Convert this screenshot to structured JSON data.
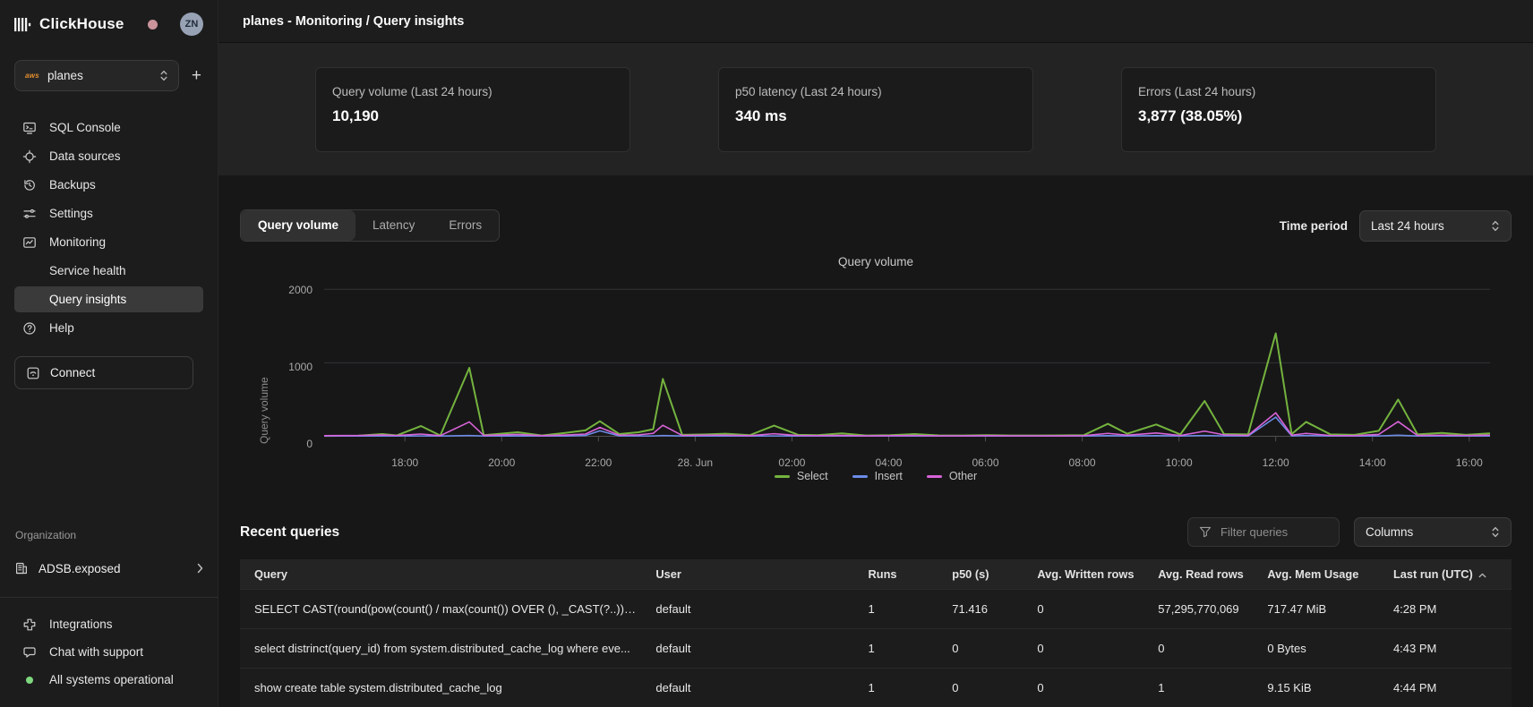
{
  "brand": {
    "name": "ClickHouse",
    "avatar": "ZN"
  },
  "sidebar": {
    "service_selector": {
      "provider": "aws",
      "label": "planes",
      "add_button": "+"
    },
    "nav": [
      {
        "label": "SQL Console",
        "icon": "sql-console-icon"
      },
      {
        "label": "Data sources",
        "icon": "data-sources-icon"
      },
      {
        "label": "Backups",
        "icon": "backups-icon"
      },
      {
        "label": "Settings",
        "icon": "settings-icon"
      },
      {
        "label": "Monitoring",
        "icon": "monitoring-icon"
      },
      {
        "label": "Service health",
        "sub": true
      },
      {
        "label": "Query insights",
        "sub": true,
        "active": true
      },
      {
        "label": "Help",
        "icon": "help-icon"
      }
    ],
    "connect": {
      "label": "Connect"
    },
    "organization": {
      "section_label": "Organization",
      "name": "ADSB.exposed"
    },
    "footer": [
      {
        "label": "Integrations",
        "icon": "integrations-icon"
      },
      {
        "label": "Chat with support",
        "icon": "chat-icon"
      },
      {
        "label": "All systems operational",
        "icon": "status-dot",
        "dot_color": "#7ed87e"
      }
    ]
  },
  "topbar": {
    "title": "planes - Monitoring / Query insights"
  },
  "stats_cards": [
    {
      "label": "Query volume (Last 24 hours)",
      "value": "10,190"
    },
    {
      "label": "p50 latency (Last 24 hours)",
      "value": "340 ms"
    },
    {
      "label": "Errors (Last 24 hours)",
      "value": "3,877 (38.05%)"
    }
  ],
  "chart_tabs": {
    "tabs": [
      {
        "label": "Query volume",
        "active": true
      },
      {
        "label": "Latency",
        "active": false
      },
      {
        "label": "Errors",
        "active": false
      }
    ],
    "time_period_label": "Time period",
    "time_period_value": "Last 24 hours"
  },
  "chart_data": {
    "type": "line",
    "title": "Query volume",
    "ylabel": "Query volume",
    "ylim": [
      0,
      2000
    ],
    "yticks": [
      0,
      1000,
      2000
    ],
    "grid": "horizontal",
    "legend_position": "bottom",
    "x_unit": "hours from window start (24h window, 27 Jun 16:20 - 28 Jun 16:25 approx)",
    "xrange": [
      0,
      24.1
    ],
    "xticks": [
      {
        "pos": 1.67,
        "label": "18:00"
      },
      {
        "pos": 3.67,
        "label": "20:00"
      },
      {
        "pos": 5.67,
        "label": "22:00"
      },
      {
        "pos": 7.67,
        "label": "28. Jun"
      },
      {
        "pos": 9.67,
        "label": "02:00"
      },
      {
        "pos": 11.67,
        "label": "04:00"
      },
      {
        "pos": 13.67,
        "label": "06:00"
      },
      {
        "pos": 15.67,
        "label": "08:00"
      },
      {
        "pos": 17.67,
        "label": "10:00"
      },
      {
        "pos": 19.67,
        "label": "12:00"
      },
      {
        "pos": 21.67,
        "label": "14:00"
      },
      {
        "pos": 23.67,
        "label": "16:00"
      }
    ],
    "x": [
      0,
      0.7,
      1.2,
      1.5,
      2.0,
      2.4,
      3.0,
      3.3,
      4.0,
      4.5,
      5.0,
      5.4,
      5.7,
      6.1,
      6.5,
      6.8,
      7.0,
      7.4,
      7.9,
      8.3,
      8.8,
      9.3,
      9.8,
      10.2,
      10.7,
      11.2,
      11.7,
      12.2,
      12.7,
      13.2,
      13.7,
      14.2,
      14.7,
      15.2,
      15.7,
      16.2,
      16.6,
      17.2,
      17.7,
      18.2,
      18.6,
      19.1,
      19.67,
      20.0,
      20.3,
      20.8,
      21.3,
      21.8,
      22.2,
      22.6,
      23.1,
      23.6,
      24.1
    ],
    "series": [
      {
        "name": "Select",
        "color": "#74b33e",
        "values": [
          5,
          8,
          30,
          12,
          140,
          10,
          930,
          15,
          55,
          10,
          48,
          80,
          205,
          30,
          55,
          95,
          780,
          20,
          25,
          35,
          15,
          145,
          20,
          15,
          40,
          10,
          15,
          30,
          12,
          10,
          15,
          10,
          10,
          12,
          15,
          170,
          35,
          160,
          25,
          480,
          30,
          25,
          1400,
          30,
          195,
          25,
          20,
          75,
          500,
          25,
          45,
          20,
          40
        ]
      },
      {
        "name": "Insert",
        "color": "#6b8be8",
        "values": [
          3,
          3,
          3,
          3,
          5,
          3,
          10,
          3,
          4,
          3,
          4,
          10,
          75,
          5,
          5,
          5,
          10,
          3,
          3,
          3,
          3,
          5,
          3,
          3,
          3,
          3,
          3,
          3,
          3,
          3,
          3,
          3,
          3,
          3,
          3,
          8,
          4,
          8,
          4,
          10,
          5,
          4,
          260,
          6,
          10,
          4,
          4,
          5,
          15,
          4,
          4,
          3,
          4
        ]
      },
      {
        "name": "Other",
        "color": "#d863d8",
        "values": [
          8,
          10,
          18,
          10,
          30,
          8,
          195,
          12,
          25,
          8,
          18,
          30,
          120,
          15,
          20,
          40,
          150,
          12,
          15,
          15,
          8,
          35,
          10,
          8,
          12,
          6,
          8,
          10,
          6,
          6,
          8,
          6,
          6,
          6,
          8,
          40,
          15,
          45,
          10,
          70,
          20,
          12,
          320,
          15,
          40,
          10,
          8,
          25,
          200,
          12,
          15,
          10,
          15
        ]
      }
    ]
  },
  "recent_queries": {
    "title": "Recent queries",
    "filter_placeholder": "Filter queries",
    "columns_button": "Columns",
    "table": {
      "headers": [
        "Query",
        "User",
        "Runs",
        "p50 (s)",
        "Avg. Written rows",
        "Avg. Read rows",
        "Avg. Mem Usage",
        "Last run (UTC)"
      ],
      "sort": {
        "column": "Last run (UTC)",
        "direction": "asc"
      },
      "rows": [
        [
          "SELECT CAST(round(pow(count() / max(count()) OVER (), _CAST(?..)) * ...",
          "default",
          "1",
          "71.416",
          "0",
          "57,295,770,069",
          "717.47 MiB",
          "4:28 PM"
        ],
        [
          "select distrinct(query_id) from system.distributed_cache_log where eve...",
          "default",
          "1",
          "0",
          "0",
          "0",
          "0 Bytes",
          "4:43 PM"
        ],
        [
          "show create table system.distributed_cache_log",
          "default",
          "1",
          "0",
          "0",
          "1",
          "9.15 KiB",
          "4:44 PM"
        ]
      ]
    }
  }
}
